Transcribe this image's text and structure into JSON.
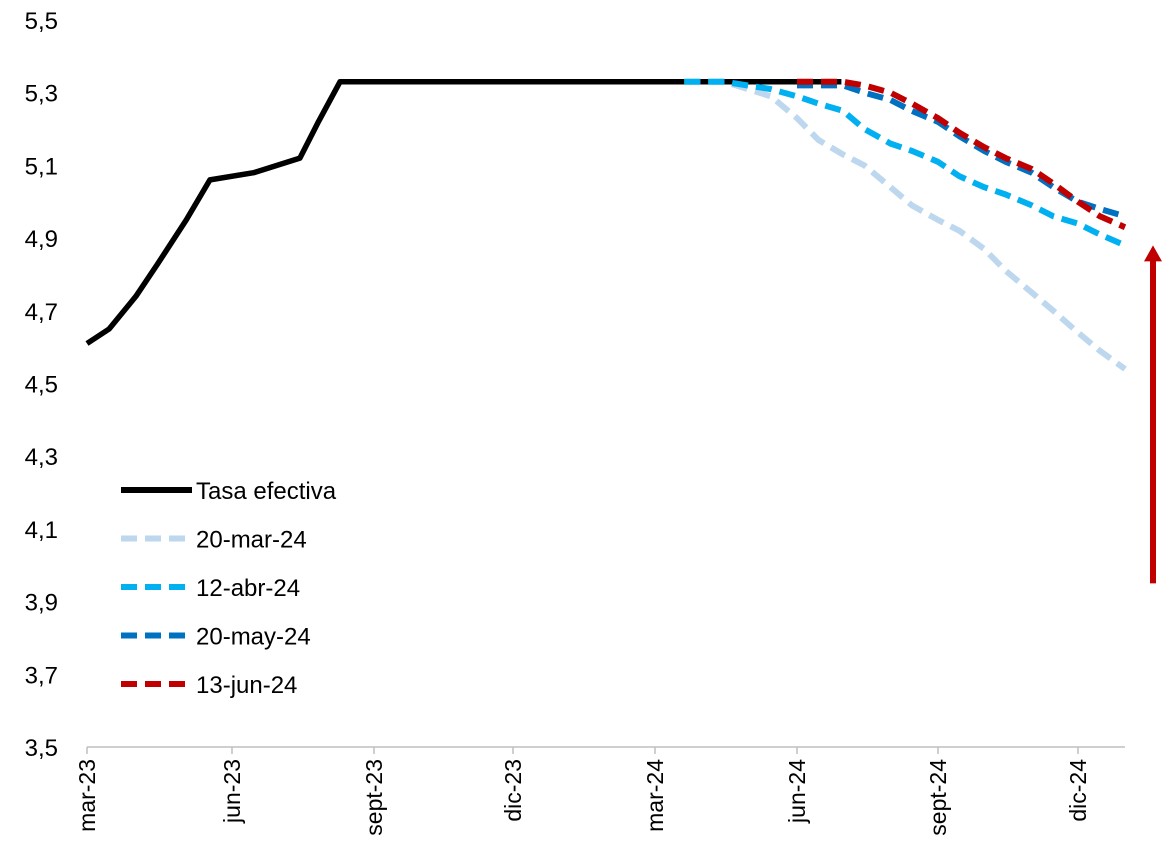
{
  "chart_data": {
    "type": "line",
    "title": "",
    "xlabel": "",
    "ylabel": "",
    "ylim": [
      3.5,
      5.5
    ],
    "xlim": [
      "2023-03-01",
      "2024-12-31"
    ],
    "y_ticks": [
      "3,5",
      "3,7",
      "3,9",
      "4,1",
      "4,3",
      "4,5",
      "4,7",
      "4,9",
      "5,1",
      "5,3",
      "5,5"
    ],
    "x_tick_labels": [
      "mar-23",
      "jun-23",
      "sept-23",
      "dic-23",
      "mar-24",
      "jun-24",
      "sept-24",
      "dic-24"
    ],
    "grid": false,
    "legend_position": "bottom-left",
    "series": [
      {
        "name": "Tasa efectiva",
        "color": "#000000",
        "style": "solid",
        "points": [
          [
            "2023-03-01",
            4.61
          ],
          [
            "2023-03-15",
            4.65
          ],
          [
            "2023-04-01",
            4.74
          ],
          [
            "2023-04-15",
            4.83
          ],
          [
            "2023-05-03",
            4.95
          ],
          [
            "2023-05-18",
            5.06
          ],
          [
            "2023-06-15",
            5.08
          ],
          [
            "2023-07-15",
            5.12
          ],
          [
            "2023-07-27",
            5.22
          ],
          [
            "2023-08-10",
            5.33
          ],
          [
            "2024-06-30",
            5.33
          ]
        ]
      },
      {
        "name": "20-mar-24",
        "color": "#bdd7ee",
        "style": "dashed",
        "points": [
          [
            "2024-03-20",
            5.33
          ],
          [
            "2024-04-15",
            5.33
          ],
          [
            "2024-05-15",
            5.29
          ],
          [
            "2024-06-01",
            5.23
          ],
          [
            "2024-06-15",
            5.17
          ],
          [
            "2024-07-01",
            5.13
          ],
          [
            "2024-07-15",
            5.1
          ],
          [
            "2024-08-01",
            5.04
          ],
          [
            "2024-08-15",
            4.99
          ],
          [
            "2024-09-01",
            4.95
          ],
          [
            "2024-09-15",
            4.92
          ],
          [
            "2024-10-01",
            4.87
          ],
          [
            "2024-10-15",
            4.81
          ],
          [
            "2024-11-01",
            4.75
          ],
          [
            "2024-11-15",
            4.7
          ],
          [
            "2024-12-01",
            4.64
          ],
          [
            "2024-12-15",
            4.59
          ],
          [
            "2024-12-31",
            4.54
          ]
        ]
      },
      {
        "name": "12-abr-24",
        "color": "#00b0f0",
        "style": "dashed",
        "points": [
          [
            "2024-03-20",
            5.33
          ],
          [
            "2024-04-15",
            5.33
          ],
          [
            "2024-05-15",
            5.31
          ],
          [
            "2024-06-01",
            5.29
          ],
          [
            "2024-06-15",
            5.27
          ],
          [
            "2024-07-01",
            5.25
          ],
          [
            "2024-07-15",
            5.2
          ],
          [
            "2024-08-01",
            5.16
          ],
          [
            "2024-08-15",
            5.14
          ],
          [
            "2024-09-01",
            5.11
          ],
          [
            "2024-09-15",
            5.07
          ],
          [
            "2024-10-01",
            5.04
          ],
          [
            "2024-10-15",
            5.02
          ],
          [
            "2024-11-01",
            4.99
          ],
          [
            "2024-11-15",
            4.96
          ],
          [
            "2024-12-01",
            4.94
          ],
          [
            "2024-12-15",
            4.91
          ],
          [
            "2024-12-31",
            4.88
          ]
        ]
      },
      {
        "name": "20-may-24",
        "color": "#0070c0",
        "style": "dashed",
        "points": [
          [
            "2024-06-01",
            5.32
          ],
          [
            "2024-06-15",
            5.32
          ],
          [
            "2024-07-01",
            5.32
          ],
          [
            "2024-07-15",
            5.3
          ],
          [
            "2024-08-01",
            5.28
          ],
          [
            "2024-08-15",
            5.25
          ],
          [
            "2024-09-01",
            5.22
          ],
          [
            "2024-09-15",
            5.18
          ],
          [
            "2024-10-01",
            5.14
          ],
          [
            "2024-10-15",
            5.11
          ],
          [
            "2024-11-01",
            5.08
          ],
          [
            "2024-11-15",
            5.04
          ],
          [
            "2024-12-01",
            5.0
          ],
          [
            "2024-12-15",
            4.98
          ],
          [
            "2024-12-31",
            4.96
          ]
        ]
      },
      {
        "name": "13-jun-24",
        "color": "#c00000",
        "style": "dashed",
        "points": [
          [
            "2024-06-01",
            5.33
          ],
          [
            "2024-06-15",
            5.33
          ],
          [
            "2024-07-01",
            5.33
          ],
          [
            "2024-07-15",
            5.32
          ],
          [
            "2024-08-01",
            5.3
          ],
          [
            "2024-08-15",
            5.27
          ],
          [
            "2024-09-01",
            5.23
          ],
          [
            "2024-09-15",
            5.19
          ],
          [
            "2024-10-01",
            5.15
          ],
          [
            "2024-10-15",
            5.12
          ],
          [
            "2024-11-01",
            5.09
          ],
          [
            "2024-11-15",
            5.05
          ],
          [
            "2024-12-01",
            5.0
          ],
          [
            "2024-12-15",
            4.96
          ],
          [
            "2024-12-31",
            4.93
          ]
        ]
      }
    ],
    "annotations": [
      {
        "type": "arrow",
        "direction": "up",
        "color": "#c00000",
        "from_y": 3.95,
        "to_y": 4.88
      }
    ]
  }
}
